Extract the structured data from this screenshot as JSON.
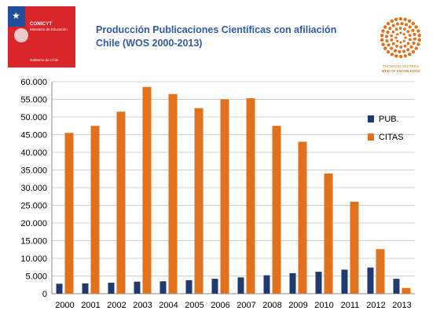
{
  "logo": {
    "org": "CONICYT",
    "subtitle": "Ministerio de Educación",
    "government": "Gobierno de Chile"
  },
  "title_lines": [
    "Producción Publicaciones Científicas con afiliación",
    "Chile (WOS 2000-2013)"
  ],
  "wok_logo": {
    "line1": "THOMSON REUTERS",
    "line2": "WEB OF KNOWLEDGE"
  },
  "colors": {
    "pub": "#1f3a6e",
    "citas": "#e2711d",
    "title": "#2f5aa6",
    "logo_red": "#d8262b"
  },
  "chart_data": {
    "type": "bar",
    "title": "Producción Publicaciones Científicas con afiliación Chile (WOS 2000-2013)",
    "xlabel": "",
    "ylabel": "",
    "ylim": [
      0,
      60000
    ],
    "yticks": [
      "0",
      "5.000",
      "10.000",
      "15.000",
      "20.000",
      "25.000",
      "30.000",
      "35.000",
      "40.000",
      "45.000",
      "50.000",
      "55.000",
      "60.000"
    ],
    "grid": true,
    "legend_position": "right",
    "categories": [
      "2000",
      "2001",
      "2002",
      "2003",
      "2004",
      "2005",
      "2006",
      "2007",
      "2008",
      "2009",
      "2010",
      "2011",
      "2012",
      "2013"
    ],
    "series": [
      {
        "name": "PUB.",
        "values": [
          2800,
          2900,
          3100,
          3400,
          3500,
          3800,
          4200,
          4600,
          5200,
          5800,
          6200,
          6800,
          7400,
          4200
        ]
      },
      {
        "name": "CITAS",
        "values": [
          45500,
          47500,
          51500,
          58500,
          56500,
          52500,
          55000,
          55300,
          47500,
          43000,
          34000,
          26000,
          12600,
          1600
        ]
      }
    ]
  }
}
